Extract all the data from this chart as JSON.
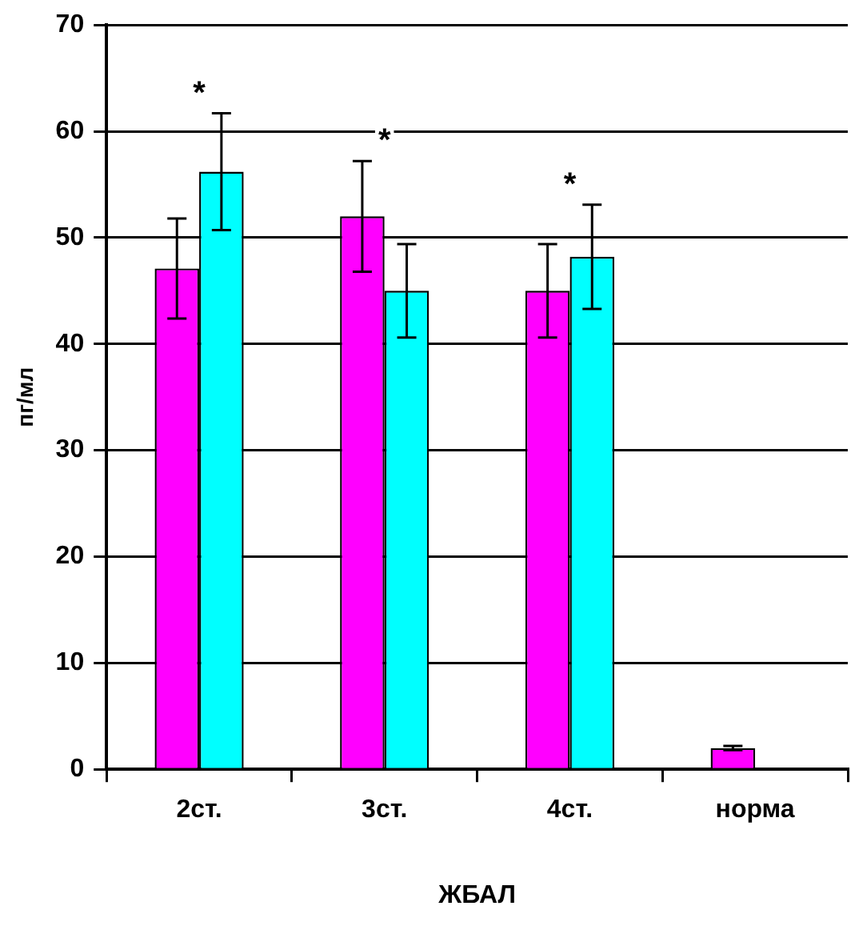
{
  "chart_data": {
    "type": "bar",
    "xlabel": "ЖБАЛ",
    "ylabel": "пг/мл",
    "categories": [
      "2ст.",
      "3ст.",
      "4ст.",
      "норма"
    ],
    "series": [
      {
        "color": "#ff00ff",
        "values": [
          47.1,
          52.0,
          45.0,
          2.0
        ],
        "errors": [
          4.7,
          5.2,
          4.4,
          0.2
        ]
      },
      {
        "color": "#00ffff",
        "values": [
          56.2,
          45.0,
          48.2,
          null
        ],
        "errors": [
          5.5,
          4.4,
          4.9,
          null
        ]
      }
    ],
    "ylim": [
      0,
      70
    ],
    "yticks": [
      0,
      10,
      20,
      30,
      40,
      50,
      60,
      70
    ],
    "grid": "y",
    "legend": false,
    "annotations": [
      "*",
      "*",
      "*"
    ]
  }
}
